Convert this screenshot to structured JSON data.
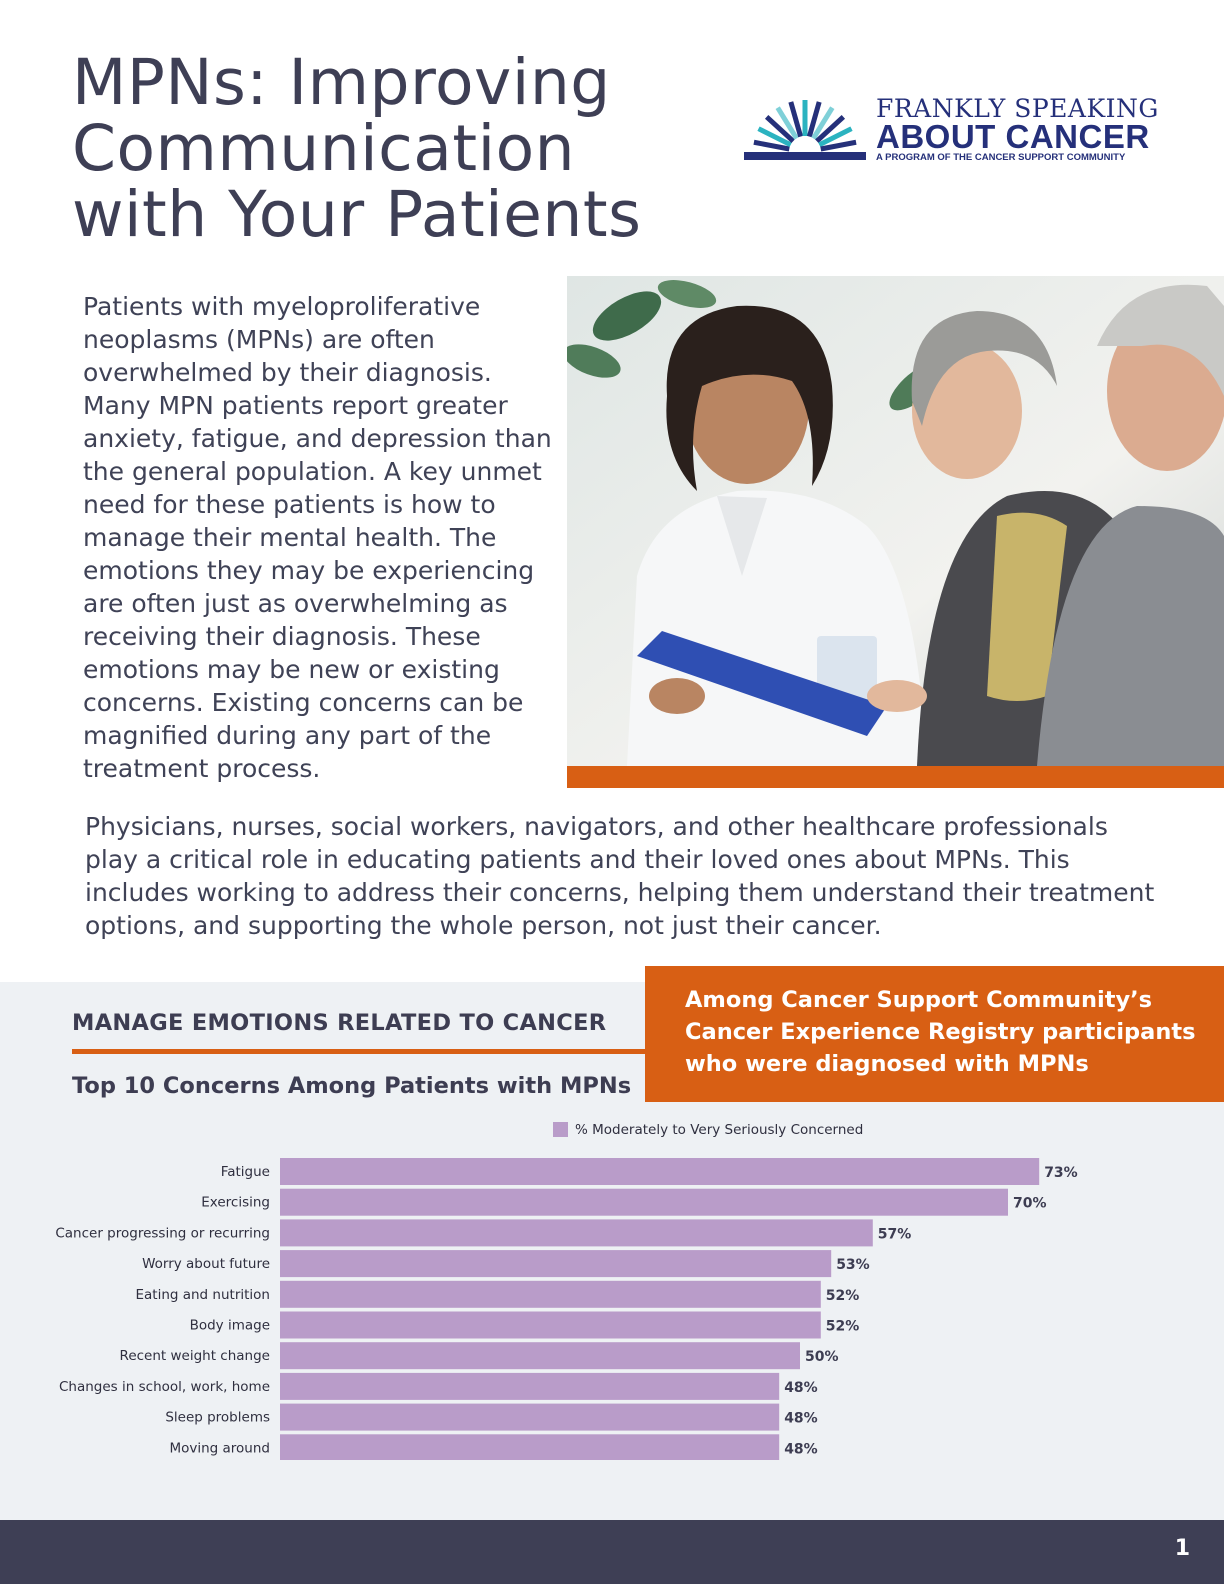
{
  "header": {
    "title_lines": [
      "MPNs: Improving",
      "Communication",
      "with Your Patients"
    ]
  },
  "logo": {
    "line1": "FRANKLY SPEAKING",
    "line2": "ABOUT CANCER",
    "line3": "A PROGRAM OF THE CANCER SUPPORT COMMUNITY"
  },
  "intro": {
    "paragraph": "Patients with myeloproliferative neoplasms (MPNs) are often overwhelmed by their diagnosis. Many MPN patients report greater anxiety, fatigue, and depression than the general population. A key unmet need for these patients is how to manage their mental health. The emotions they may be experiencing are often just as overwhelming as receiving their diagnosis. These emotions may be new or existing concerns. Existing concerns can be magnified during any part of the treatment process."
  },
  "body": {
    "paragraph2": "Physicians, nurses, social workers, navigators, and other healthcare professionals play a critical role in educating patients and their loved ones about MPNs. This includes working to address their concerns, helping them understand their treatment options, and supporting the whole person, not just their cancer."
  },
  "section": {
    "heading": "MANAGE EMOTIONS RELATED TO CANCER",
    "subheading": "Top 10 Concerns Among Patients with MPNs",
    "callout_lines": [
      "Among Cancer Support Community’s",
      "Cancer Experience Registry participants",
      "who were diagnosed with MPNs"
    ]
  },
  "chart_data": {
    "type": "bar",
    "orientation": "horizontal",
    "categories": [
      "Fatigue",
      "Exercising",
      "Cancer progressing or recurring",
      "Worry about future",
      "Eating and nutrition",
      "Body image",
      "Recent weight change",
      "Changes in school, work, home",
      "Sleep problems",
      "Moving around"
    ],
    "series": [
      {
        "name": "% Moderately to Very Seriously Concerned",
        "values": [
          73,
          70,
          57,
          53,
          52,
          52,
          50,
          48,
          48,
          48
        ]
      }
    ],
    "value_labels": [
      "73%",
      "70%",
      "57%",
      "53%",
      "52%",
      "52%",
      "50%",
      "48%",
      "48%",
      "48%"
    ],
    "legend": "top",
    "bar_color": "#b99cc9",
    "xlim": [
      0,
      100
    ],
    "grid": false
  },
  "footer": {
    "page_number": "1"
  },
  "colors": {
    "accent_orange": "#d85f14",
    "navy": "#25307a",
    "footer": "#3e3f55",
    "band": "#eef1f4"
  }
}
